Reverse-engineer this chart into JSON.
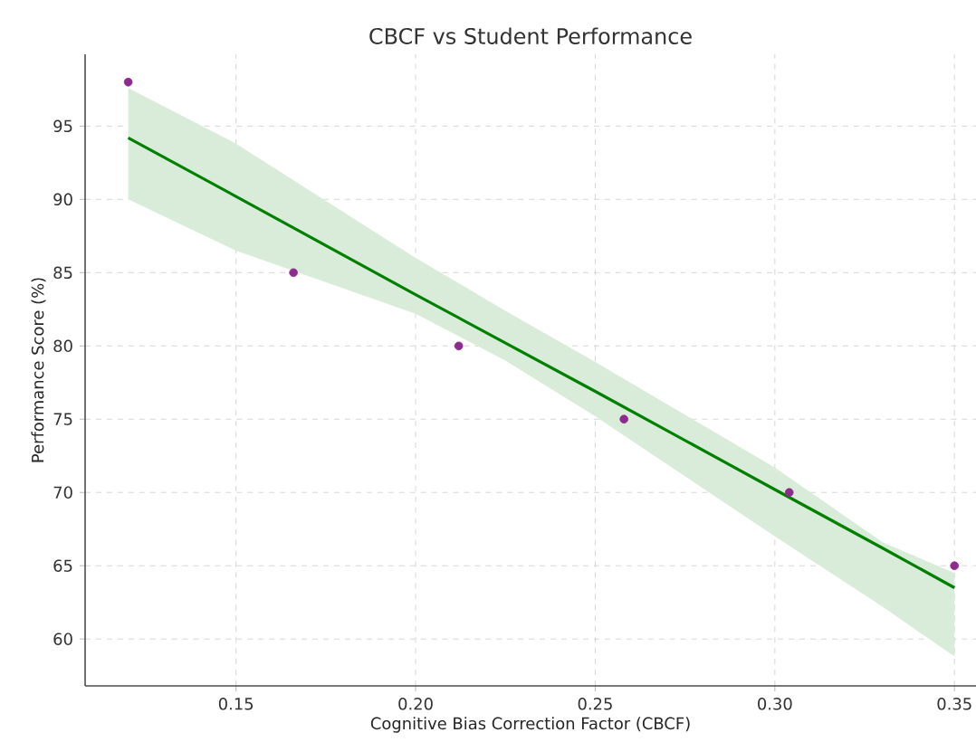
{
  "chart_data": {
    "type": "scatter",
    "title": "CBCF vs Student Performance",
    "xlabel": "Cognitive Bias Correction Factor (CBCF)",
    "ylabel": "Performance Score (%)",
    "series": [
      {
        "color": "#8e2b8e",
        "marker": "circle",
        "x": [
          0.12,
          0.166,
          0.212,
          0.258,
          0.304,
          0.35
        ],
        "values": [
          98,
          85,
          80,
          75,
          70,
          65
        ]
      },
      {
        "type": "line",
        "color": "#008000",
        "marker": "none",
        "x": [
          0.12,
          0.15,
          0.2,
          0.225,
          0.25,
          0.3,
          0.33,
          0.35
        ],
        "values": [
          94.2,
          90.2,
          83.5,
          80.2,
          76.9,
          70.2,
          66.2,
          63.5
        ],
        "lower": [
          90.0,
          86.5,
          82.2,
          79.0,
          75.2,
          67.0,
          62.2,
          58.8
        ],
        "upper": [
          97.6,
          93.8,
          86.0,
          82.4,
          78.9,
          71.7,
          66.6,
          64.5
        ]
      }
    ],
    "xlim": [
      0.108,
      0.356
    ],
    "ylim": [
      56.8,
      99.9
    ],
    "xticks": [
      0.15,
      {
        "value": 0.2,
        "label": "0.20"
      },
      0.25,
      {
        "value": 0.3,
        "label": "0.30"
      },
      0.35
    ],
    "yticks": [
      60,
      65,
      70,
      75,
      80,
      85,
      90,
      95
    ],
    "grid": true,
    "line_style": "solid"
  }
}
